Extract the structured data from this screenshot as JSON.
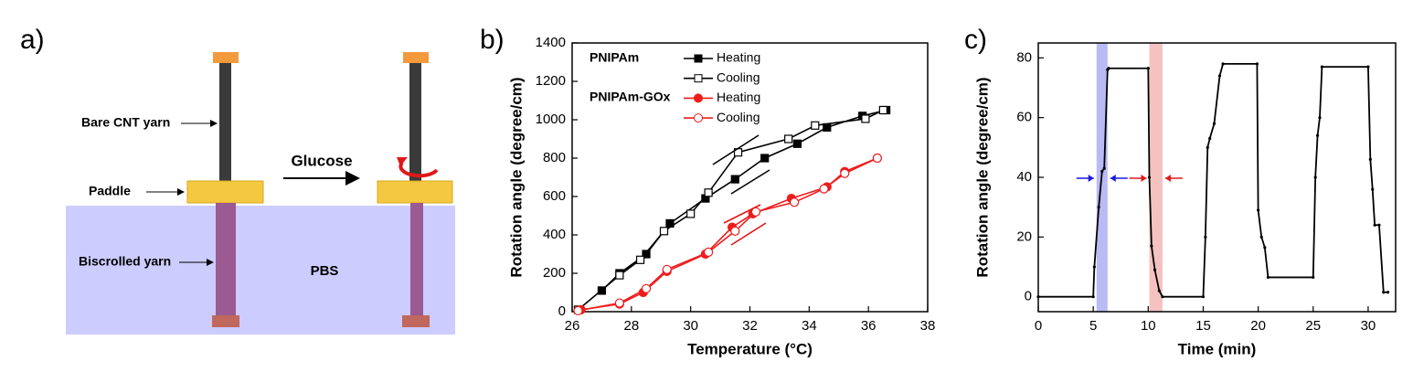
{
  "diagram": {
    "panel_label": "a)",
    "labels": {
      "bare": "Bare CNT yarn",
      "paddle": "Paddle",
      "biscrolled": "Biscrolled yarn",
      "glucose": "Glucose",
      "pbs": "PBS"
    }
  },
  "chart_data": [
    {
      "type": "line",
      "panel_label": "b)",
      "xlabel": "Temperature (°C)",
      "ylabel": "Rotation angle (degree/cm)",
      "xlim": [
        26,
        38
      ],
      "xticks": [
        26,
        28,
        30,
        32,
        34,
        36,
        38
      ],
      "ylim": [
        0,
        1400
      ],
      "yticks": [
        0,
        200,
        400,
        600,
        800,
        1000,
        1200,
        1400
      ],
      "legend_groups": [
        "PNIPAm",
        "PNIPAm-GOx"
      ],
      "series": [
        {
          "name": "Heating",
          "color": "#000000",
          "marker": "square",
          "filled": true,
          "x": [
            27.0,
            27.6,
            28.5,
            29.3,
            30.5,
            31.5,
            32.5,
            33.6,
            34.6,
            35.8,
            36.6
          ],
          "values": [
            110,
            200,
            300,
            460,
            590,
            690,
            800,
            875,
            960,
            1020,
            1050
          ]
        },
        {
          "name": "Cooling",
          "color": "#000000",
          "marker": "square",
          "filled": false,
          "x": [
            26.2,
            27.6,
            28.3,
            29.1,
            30.0,
            30.6,
            31.6,
            33.3,
            34.2,
            35.9,
            36.5
          ],
          "values": [
            10,
            190,
            270,
            420,
            510,
            620,
            830,
            900,
            970,
            1005,
            1050
          ]
        },
        {
          "name": "Heating",
          "color": "#ee1c1c",
          "marker": "circle",
          "filled": true,
          "x": [
            26.3,
            27.6,
            28.4,
            29.2,
            30.5,
            31.4,
            32.1,
            33.4,
            34.6,
            35.2,
            36.3
          ],
          "values": [
            10,
            40,
            100,
            210,
            300,
            440,
            510,
            590,
            650,
            730,
            800
          ]
        },
        {
          "name": "Cooling",
          "color": "#ee1c1c",
          "marker": "circle",
          "filled": false,
          "x": [
            26.2,
            27.6,
            28.5,
            29.2,
            30.6,
            31.5,
            32.2,
            33.5,
            34.5,
            35.2,
            36.3
          ],
          "values": [
            5,
            45,
            120,
            220,
            310,
            420,
            520,
            570,
            640,
            720,
            800
          ]
        }
      ]
    },
    {
      "type": "line",
      "panel_label": "c)",
      "xlabel": "Time (min)",
      "ylabel": "Rotation angle (degree/cm)",
      "xlim": [
        0,
        32.5
      ],
      "xticks": [
        0,
        5,
        10,
        15,
        20,
        25,
        30
      ],
      "ylim": [
        -5,
        85
      ],
      "yticks": [
        0,
        20,
        40,
        60,
        80
      ],
      "color": "#000000",
      "highlight_spans": [
        {
          "x": [
            5.3,
            6.3
          ],
          "color": "#a9a9f2"
        },
        {
          "x": [
            10.1,
            11.3
          ],
          "color": "#f2b3b3"
        }
      ],
      "x": [
        0,
        5,
        5.1,
        5.5,
        5.8,
        6.0,
        6.3,
        6.4,
        10,
        10.1,
        10.3,
        10.6,
        11.0,
        11.3,
        15.0,
        15.2,
        15.4,
        15.6,
        16.0,
        16.5,
        16.8,
        19.9,
        20.0,
        20.3,
        20.6,
        20.9,
        25.0,
        25.2,
        25.4,
        25.6,
        25.8,
        30.0,
        30.2,
        30.4,
        30.6,
        31.0,
        31.4,
        31.8
      ],
      "values": [
        0,
        0,
        10,
        30,
        42,
        43,
        76,
        76.5,
        76.5,
        40,
        17,
        9,
        2,
        0,
        0,
        20,
        50,
        53,
        58,
        74,
        78,
        78,
        29,
        20,
        16.5,
        6.5,
        6.5,
        40,
        54,
        60,
        77,
        77,
        46,
        36,
        24,
        24,
        1.5,
        1.5
      ]
    }
  ]
}
